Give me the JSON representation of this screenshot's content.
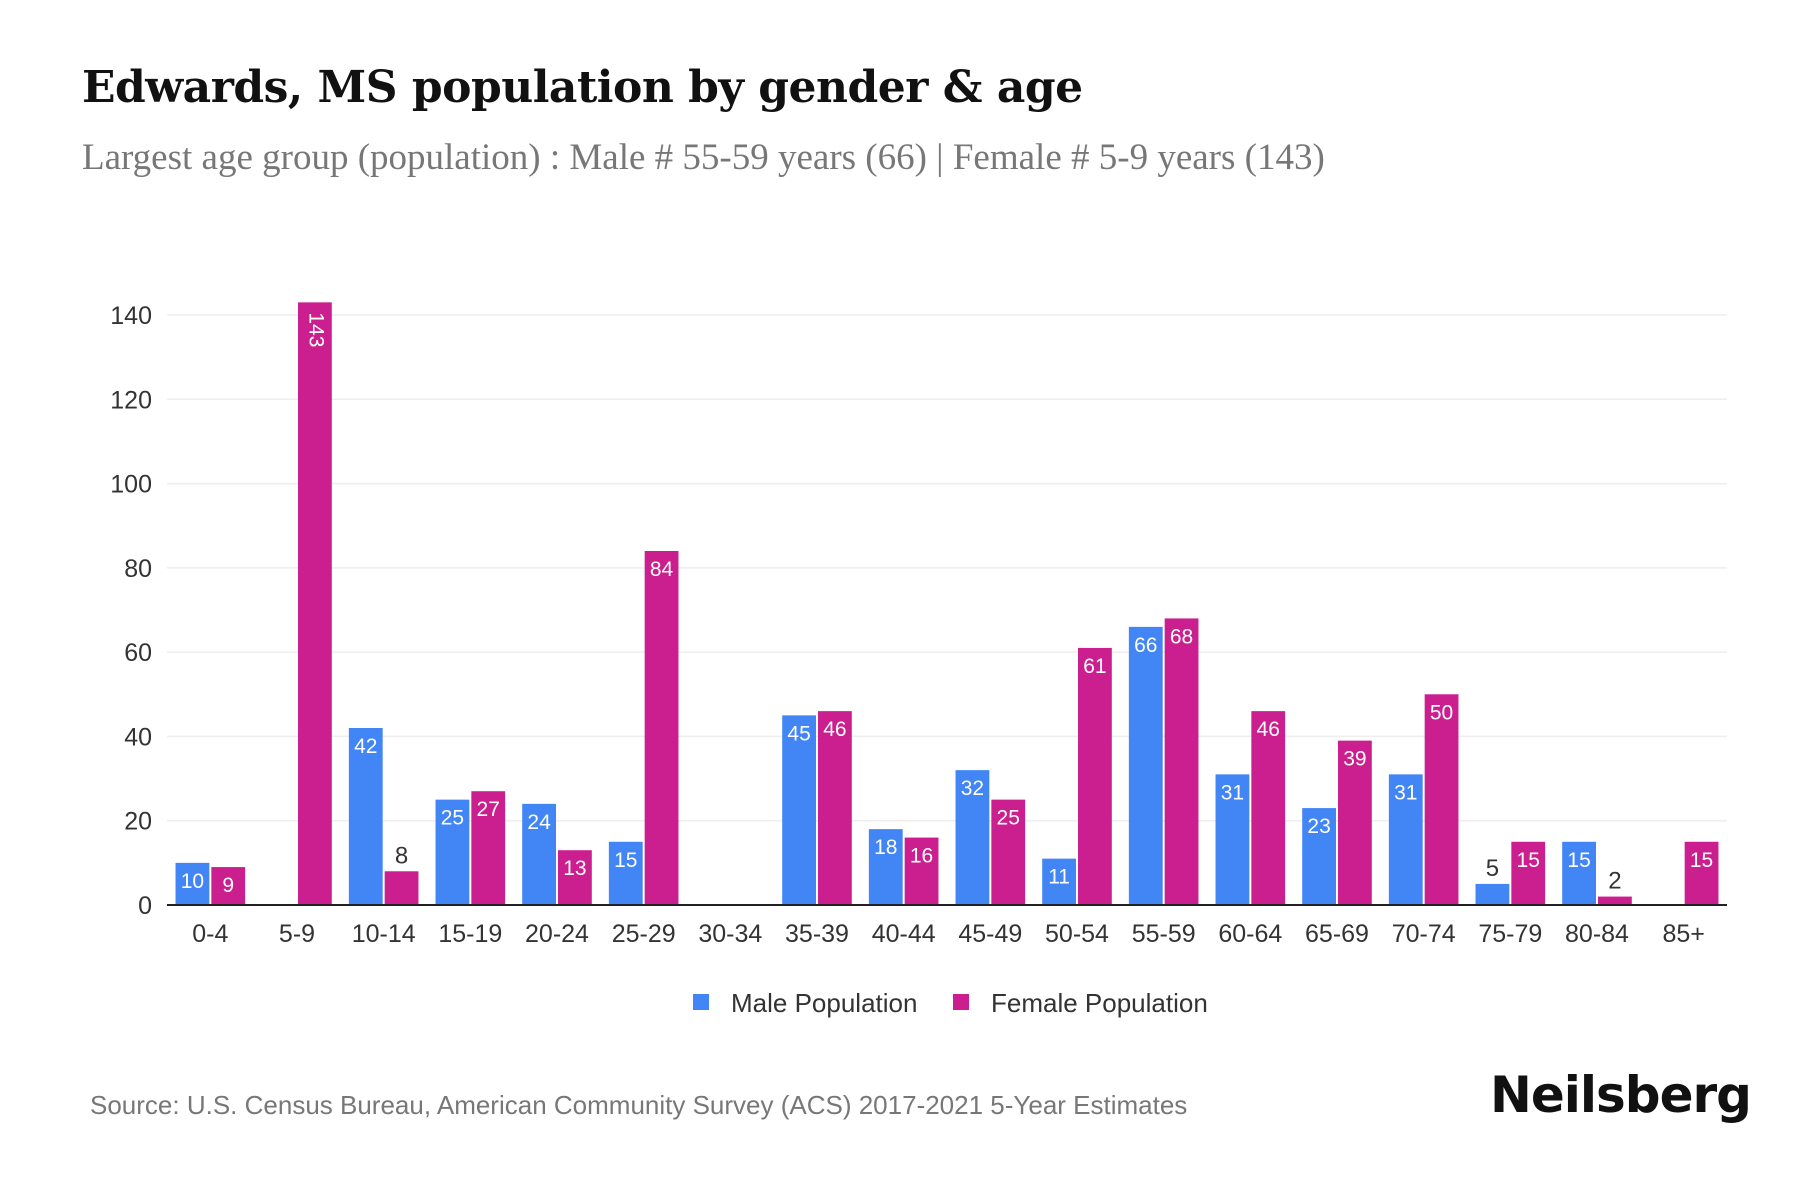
{
  "chart_data": {
    "type": "bar",
    "title": "Edwards, MS population by gender & age",
    "subtitle": "Largest age group (population) : Male # 55-59 years (66) | Female # 5-9 years (143)",
    "categories": [
      "0-4",
      "5-9",
      "10-14",
      "15-19",
      "20-24",
      "25-29",
      "30-34",
      "35-39",
      "40-44",
      "45-49",
      "50-54",
      "55-59",
      "60-64",
      "65-69",
      "70-74",
      "75-79",
      "80-84",
      "85+"
    ],
    "series": [
      {
        "name": "Male Population",
        "color": "#4285f4",
        "values": [
          10,
          0,
          42,
          25,
          24,
          15,
          0,
          45,
          18,
          32,
          11,
          66,
          31,
          23,
          31,
          5,
          15,
          0
        ]
      },
      {
        "name": "Female Population",
        "color": "#cc1f8f",
        "values": [
          9,
          143,
          8,
          27,
          13,
          84,
          0,
          46,
          16,
          25,
          61,
          68,
          46,
          39,
          50,
          15,
          2,
          15
        ]
      }
    ],
    "yticks": [
      0,
      20,
      40,
      60,
      80,
      100,
      120,
      140
    ],
    "ylim": [
      0,
      140
    ],
    "grid": true,
    "legend": "bottom"
  },
  "footer": {
    "source": "Source: U.S. Census Bureau, American Community Survey (ACS) 2017-2021 5-Year Estimates",
    "logo": "Neilsberg"
  }
}
